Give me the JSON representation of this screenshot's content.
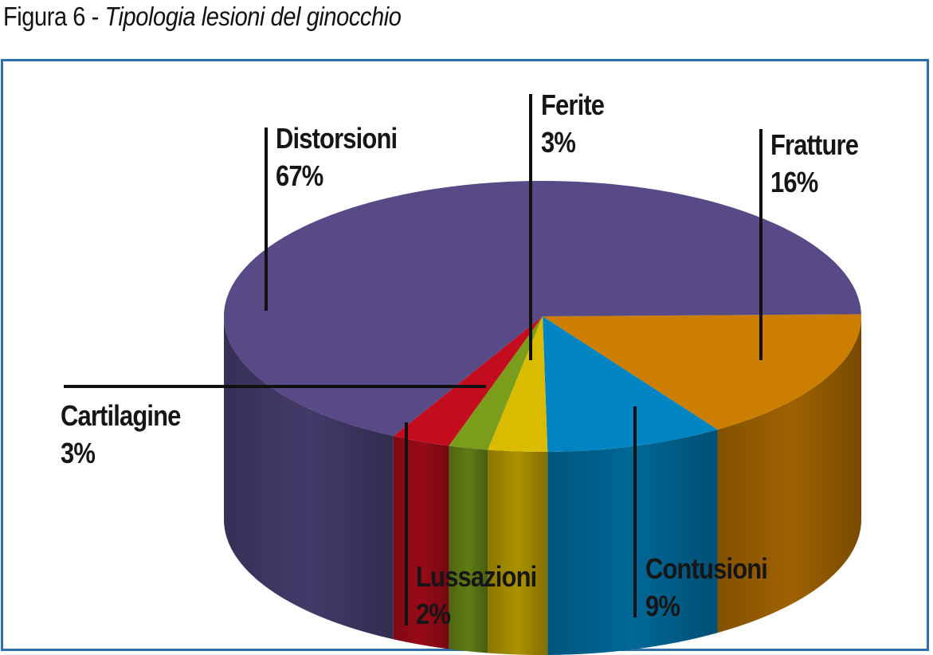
{
  "figure": {
    "label": "Figura 6 -",
    "subtitle": "Tipologia lesioni del ginocchio"
  },
  "chart_data": {
    "type": "pie",
    "title": "Tipologia lesioni del ginocchio",
    "style": "3d",
    "legend": "none",
    "slices": [
      {
        "name": "Distorsioni",
        "value": 67,
        "label": "67%",
        "color": "#574a87"
      },
      {
        "name": "Fratture",
        "value": 16,
        "label": "16%",
        "color": "#cc7e00"
      },
      {
        "name": "Contusioni",
        "value": 9,
        "label": "9%",
        "color": "#0085c2"
      },
      {
        "name": "Ferite",
        "value": 3,
        "label": "3%",
        "color": "#dbbb00"
      },
      {
        "name": "Lussazioni",
        "value": 2,
        "label": "2%",
        "color": "#7a9e1b"
      },
      {
        "name": "Cartilagine",
        "value": 3,
        "label": "3%",
        "color": "#c30d1f"
      }
    ]
  }
}
